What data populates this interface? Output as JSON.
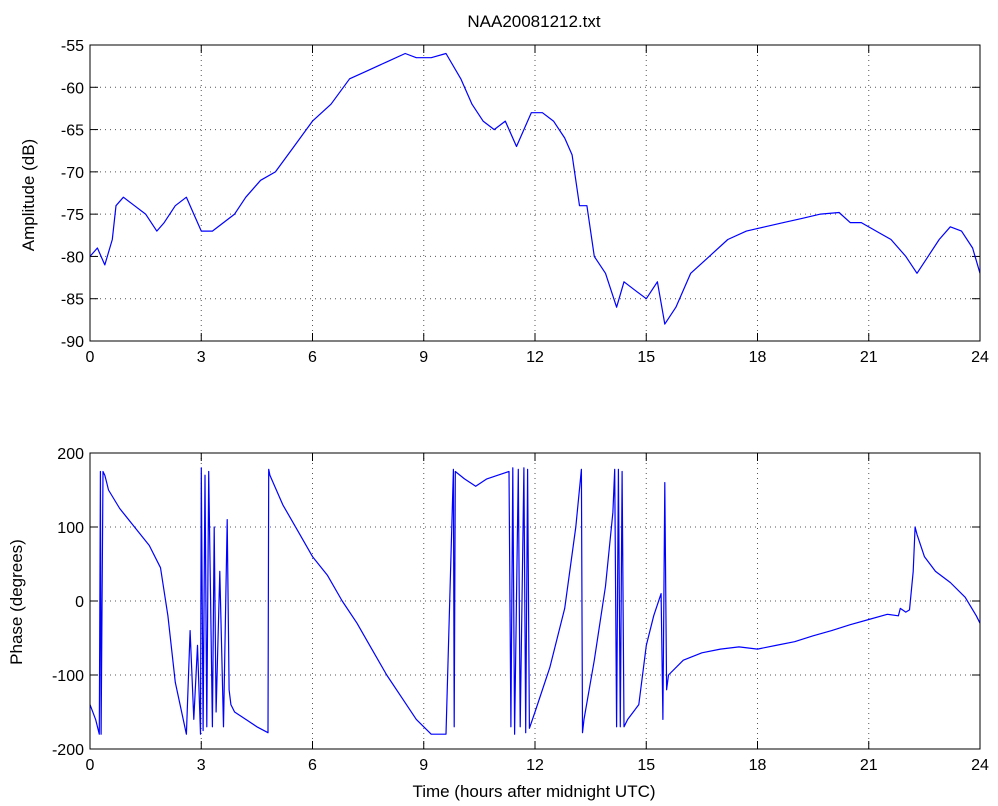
{
  "chart_data": [
    {
      "type": "line",
      "title": "NAA20081212.txt",
      "xlabel": "",
      "ylabel": "Amplitude (dB)",
      "xlim": [
        0,
        24
      ],
      "ylim": [
        -90,
        -55
      ],
      "xticks": [
        "0",
        "3",
        "6",
        "9",
        "12",
        "15",
        "18",
        "21",
        "24"
      ],
      "yticks": [
        "-55",
        "-60",
        "-65",
        "-70",
        "-75",
        "-80",
        "-85",
        "-90"
      ],
      "grid": true,
      "series": [
        {
          "color": "#0000ff",
          "x": [
            0,
            0.2,
            0.4,
            0.6,
            0.7,
            0.9,
            1.2,
            1.5,
            1.8,
            2.0,
            2.3,
            2.6,
            2.8,
            3.0,
            3.3,
            3.6,
            3.9,
            4.2,
            4.6,
            5.0,
            5.5,
            6.0,
            6.5,
            7.0,
            7.5,
            8.0,
            8.5,
            8.8,
            9.2,
            9.6,
            10.0,
            10.3,
            10.6,
            10.9,
            11.2,
            11.5,
            11.7,
            11.9,
            12.2,
            12.5,
            12.8,
            13.0,
            13.2,
            13.4,
            13.6,
            13.9,
            14.2,
            14.4,
            14.7,
            15.0,
            15.3,
            15.5,
            15.8,
            16.2,
            16.7,
            17.2,
            17.7,
            18.2,
            18.7,
            19.2,
            19.7,
            20.2,
            20.5,
            20.8,
            21.2,
            21.6,
            22.0,
            22.3,
            22.6,
            22.9,
            23.2,
            23.5,
            23.8,
            24.0
          ],
          "y": [
            -80,
            -79,
            -81,
            -78,
            -74,
            -73,
            -74,
            -75,
            -77,
            -76,
            -74,
            -73,
            -75,
            -77,
            -77,
            -76,
            -75,
            -73,
            -71,
            -70,
            -67,
            -64,
            -62,
            -59,
            -58,
            -57,
            -56,
            -56.5,
            -56.5,
            -56,
            -59,
            -62,
            -64,
            -65,
            -64,
            -67,
            -65,
            -63,
            -63,
            -64,
            -66,
            -68,
            -74,
            -74,
            -80,
            -82,
            -86,
            -83,
            -84,
            -85,
            -83,
            -88,
            -86,
            -82,
            -80,
            -78,
            -77,
            -76.5,
            -76,
            -75.5,
            -75,
            -74.8,
            -76,
            -76,
            -77,
            -78,
            -80,
            -82,
            -80,
            -78,
            -76.5,
            -77,
            -79,
            -82
          ]
        }
      ]
    },
    {
      "type": "line",
      "title": "",
      "xlabel": "Time (hours after midnight UTC)",
      "ylabel": "Phase (degrees)",
      "xlim": [
        0,
        24
      ],
      "ylim": [
        -200,
        200
      ],
      "xticks": [
        "0",
        "3",
        "6",
        "9",
        "12",
        "15",
        "18",
        "21",
        "24"
      ],
      "yticks": [
        "200",
        "100",
        "0",
        "-100",
        "-200"
      ],
      "grid": true,
      "series": [
        {
          "color": "#0000ff",
          "x": [
            0,
            0.15,
            0.25,
            0.28,
            0.3,
            0.35,
            0.4,
            0.45,
            0.5,
            0.8,
            1.2,
            1.6,
            1.9,
            2.1,
            2.3,
            2.6,
            2.7,
            2.8,
            2.9,
            2.98,
            3.0,
            3.05,
            3.1,
            3.15,
            3.2,
            3.25,
            3.3,
            3.35,
            3.4,
            3.5,
            3.6,
            3.7,
            3.75,
            3.8,
            3.9,
            4.2,
            4.5,
            4.8,
            4.82,
            4.85,
            5.2,
            5.6,
            6.0,
            6.4,
            6.8,
            7.2,
            7.6,
            8.0,
            8.4,
            8.8,
            9.2,
            9.6,
            9.8,
            9.82,
            9.85,
            10.1,
            10.4,
            10.7,
            11.0,
            11.3,
            11.35,
            11.4,
            11.45,
            11.55,
            11.6,
            11.7,
            11.75,
            11.8,
            11.85,
            12.0,
            12.4,
            12.8,
            13.1,
            13.25,
            13.28,
            13.32,
            13.6,
            13.9,
            14.1,
            14.15,
            14.2,
            14.25,
            14.3,
            14.35,
            14.4,
            14.5,
            14.8,
            15.0,
            15.2,
            15.4,
            15.45,
            15.5,
            15.55,
            15.6,
            16.0,
            16.5,
            17.0,
            17.5,
            18.0,
            18.5,
            19.0,
            19.5,
            20.0,
            20.5,
            21.0,
            21.5,
            21.8,
            21.85,
            22.0,
            22.1,
            22.2,
            22.25,
            22.3,
            22.5,
            22.8,
            23.2,
            23.6,
            23.9,
            24.0
          ],
          "y": [
            -140,
            -160,
            -180,
            175,
            -180,
            175,
            170,
            160,
            150,
            125,
            100,
            75,
            45,
            -20,
            -110,
            -180,
            -40,
            -160,
            -60,
            -180,
            180,
            -175,
            170,
            -170,
            175,
            10,
            -170,
            100,
            -150,
            40,
            -170,
            110,
            -120,
            -140,
            -150,
            -160,
            -170,
            -178,
            178,
            170,
            130,
            95,
            60,
            35,
            0,
            -30,
            -65,
            -100,
            -130,
            -160,
            -180,
            -180,
            178,
            -170,
            175,
            165,
            155,
            165,
            170,
            175,
            -170,
            180,
            -180,
            178,
            -170,
            180,
            -178,
            178,
            -172,
            -150,
            -90,
            -10,
            100,
            178,
            -178,
            -160,
            -80,
            20,
            120,
            178,
            -170,
            178,
            -170,
            175,
            -170,
            -160,
            -140,
            -60,
            -20,
            10,
            -160,
            160,
            -120,
            -100,
            -80,
            -70,
            -65,
            -62,
            -65,
            -60,
            -55,
            -47,
            -40,
            -32,
            -25,
            -18,
            -20,
            -10,
            -15,
            -12,
            40,
            100,
            90,
            60,
            40,
            25,
            5,
            -20,
            -30
          ]
        }
      ]
    }
  ]
}
